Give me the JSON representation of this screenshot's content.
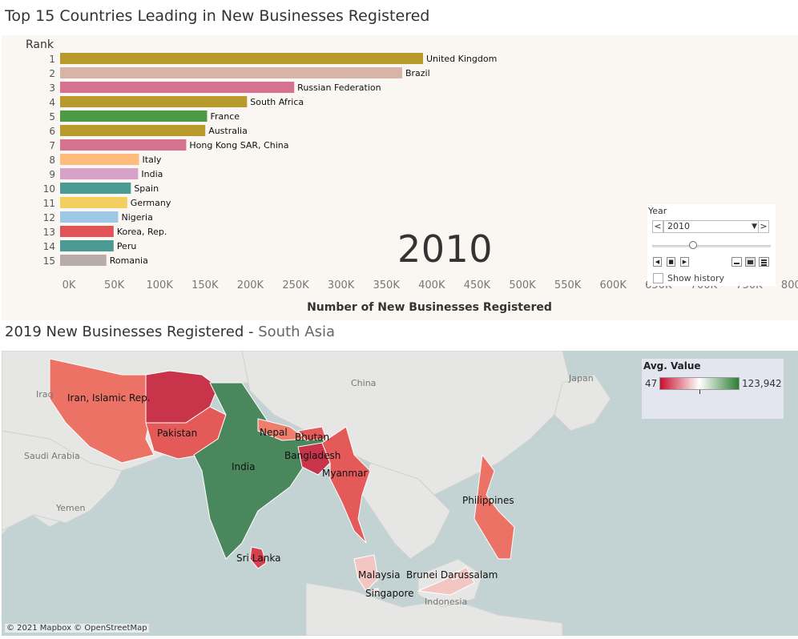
{
  "title": "Top 15 Countries Leading in New Businesses Registered",
  "year_display": "2010",
  "chart_data": {
    "type": "bar",
    "orientation": "horizontal",
    "title": "Top 15 Countries Leading in New Businesses Registered",
    "ylabel": "Rank",
    "xlabel": "Number of New Businesses Registered",
    "xlim": [
      0,
      800000
    ],
    "xticks": [
      "0K",
      "50K",
      "100K",
      "150K",
      "200K",
      "250K",
      "300K",
      "350K",
      "400K",
      "450K",
      "500K",
      "550K",
      "600K",
      "650K",
      "700K",
      "750K",
      "800K"
    ],
    "bars": [
      {
        "rank": "1",
        "country": "United Kingdom",
        "value": 400000,
        "color": "#b8992c"
      },
      {
        "rank": "2",
        "country": "Brazil",
        "value": 377000,
        "color": "#d6b4a6"
      },
      {
        "rank": "3",
        "country": "Russian Federation",
        "value": 258000,
        "color": "#d6718f"
      },
      {
        "rank": "4",
        "country": "South Africa",
        "value": 206000,
        "color": "#b8992c"
      },
      {
        "rank": "5",
        "country": "France",
        "value": 162000,
        "color": "#4c9a45"
      },
      {
        "rank": "6",
        "country": "Australia",
        "value": 160000,
        "color": "#b8992c"
      },
      {
        "rank": "7",
        "country": "Hong Kong SAR, China",
        "value": 139000,
        "color": "#d6718f"
      },
      {
        "rank": "8",
        "country": "Italy",
        "value": 87000,
        "color": "#fdbb7c"
      },
      {
        "rank": "9",
        "country": "India",
        "value": 86000,
        "color": "#d7a2c8"
      },
      {
        "rank": "10",
        "country": "Spain",
        "value": 78000,
        "color": "#4c9a94"
      },
      {
        "rank": "11",
        "country": "Germany",
        "value": 74000,
        "color": "#f2cf5e"
      },
      {
        "rank": "12",
        "country": "Nigeria",
        "value": 64000,
        "color": "#9fc8e6"
      },
      {
        "rank": "13",
        "country": "Korea, Rep.",
        "value": 59000,
        "color": "#e05457"
      },
      {
        "rank": "14",
        "country": "Peru",
        "value": 59000,
        "color": "#4c9a94"
      },
      {
        "rank": "15",
        "country": "Romania",
        "value": 51000,
        "color": "#b8aca8"
      }
    ]
  },
  "year_filter": {
    "label": "Year",
    "value": "2010",
    "prev": "<",
    "next": ">",
    "show_history": "Show history"
  },
  "map": {
    "title_main": "2019 New Businesses Registered - ",
    "title_region": "South Asia",
    "legend_title": "Avg. Value",
    "legend_min": "47",
    "legend_max": "123,942",
    "attribution": "© 2021 Mapbox © OpenStreetMap",
    "labels": {
      "iran": "Iran, Islamic Rep.",
      "pakistan": "Pakistan",
      "india": "India",
      "nepal": "Nepal",
      "bhutan": "Bhutan",
      "bangladesh": "Bangladesh",
      "myanmar": "Myanmar",
      "sri_lanka": "Sri Lanka",
      "philippines": "Philippines",
      "malaysia": "Malaysia",
      "brunei": "Brunei Darussalam",
      "singapore": "Singapore"
    },
    "basemap_labels": {
      "iraq": "Iraq",
      "saudi": "Saudi Arabia",
      "yemen": "Yemen",
      "china": "China",
      "japan": "Japan",
      "indonesia": "Indonesia"
    }
  }
}
